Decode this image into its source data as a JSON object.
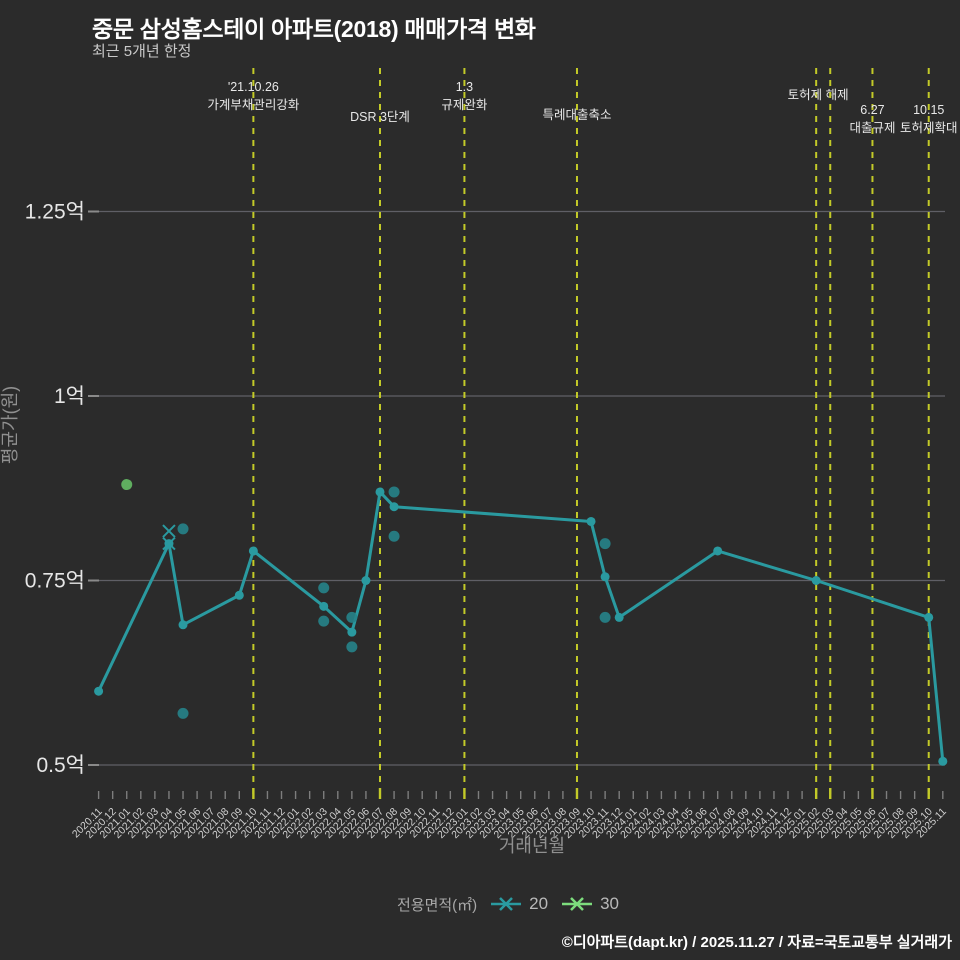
{
  "title": "중문 삼성홈스테이 아파트(2018) 매매가격 변화",
  "subtitle": "최근 5개년 한정",
  "footer": "©디아파트(dapt.kr) / 2025.11.27 / 자료=국토교통부 실거래가",
  "colors": {
    "background": "#2b2b2b",
    "title": "#ffffff",
    "grid": "#5f5f66",
    "axis_text": "#d0d0d0",
    "y_tick_text": "#e6e6e6",
    "axis_title": "#909090",
    "annotation_line": "#c3ca28",
    "annotation_text": "#e8e8e8",
    "series20": "#2a9aa0",
    "series20_scatter": "#26838a",
    "series30_scatter": "#5fae5f"
  },
  "legend": {
    "title": "전용면적(㎡)",
    "items": [
      {
        "label": "20",
        "color": "#2a9aa0"
      },
      {
        "label": "30",
        "color": "#7ddc7d"
      }
    ]
  },
  "chart_data": {
    "type": "line",
    "title": "중문 삼성홈스테이 아파트(2018) 매매가격 변화",
    "xlabel": "거래년월",
    "ylabel": "평균가(원)",
    "y_ticks": [
      {
        "value": 0.5,
        "label": "0.5억"
      },
      {
        "value": 0.75,
        "label": "0.75억"
      },
      {
        "value": 1.0,
        "label": "1억"
      },
      {
        "value": 1.25,
        "label": "1.25억"
      }
    ],
    "ylim_unit": "억원",
    "x_categories": [
      "2020.11",
      "2020.12",
      "2021.01",
      "2021.02",
      "2021.03",
      "2021.04",
      "2021.05",
      "2021.06",
      "2021.07",
      "2021.08",
      "2021.09",
      "2021.10",
      "2021.11",
      "2021.12",
      "2022.01",
      "2022.02",
      "2022.03",
      "2022.04",
      "2022.05",
      "2022.06",
      "2022.07",
      "2022.08",
      "2022.09",
      "2022.10",
      "2022.11",
      "2022.12",
      "2023.01",
      "2023.02",
      "2023.03",
      "2023.04",
      "2023.05",
      "2023.06",
      "2023.07",
      "2023.08",
      "2023.09",
      "2023.10",
      "2023.11",
      "2023.12",
      "2024.01",
      "2024.02",
      "2024.03",
      "2024.04",
      "2024.05",
      "2024.06",
      "2024.07",
      "2024.08",
      "2024.09",
      "2024.10",
      "2024.11",
      "2024.12",
      "2025.01",
      "2025.02",
      "2025.03",
      "2025.04",
      "2025.05",
      "2025.06",
      "2025.07",
      "2025.08",
      "2025.09",
      "2025.10",
      "2025.11"
    ],
    "series": [
      {
        "name": "20",
        "line_avg": [
          [
            "2020.11",
            0.6
          ],
          [
            "2021.04",
            0.8
          ],
          [
            "2021.05",
            0.69
          ],
          [
            "2021.09",
            0.73
          ],
          [
            "2021.10",
            0.79
          ],
          [
            "2022.03",
            0.715
          ],
          [
            "2022.05",
            0.68
          ],
          [
            "2022.06",
            0.75
          ],
          [
            "2022.07",
            0.87
          ],
          [
            "2022.08",
            0.85
          ],
          [
            "2023.10",
            0.83
          ],
          [
            "2023.11",
            0.755
          ],
          [
            "2023.12",
            0.7
          ],
          [
            "2024.07",
            0.79
          ],
          [
            "2025.02",
            0.75
          ],
          [
            "2025.10",
            0.7
          ],
          [
            "2025.11",
            0.505
          ]
        ],
        "scatter": [
          [
            "2021.05",
            0.82
          ],
          [
            "2021.05",
            0.57
          ],
          [
            "2022.03",
            0.74
          ],
          [
            "2022.03",
            0.695
          ],
          [
            "2022.05",
            0.7
          ],
          [
            "2022.05",
            0.66
          ],
          [
            "2022.08",
            0.87
          ],
          [
            "2022.08",
            0.81
          ],
          [
            "2023.11",
            0.8
          ],
          [
            "2023.11",
            0.7
          ]
        ],
        "x_markers": [
          [
            "2021.04",
            0.817
          ],
          [
            "2021.04",
            0.8
          ]
        ]
      },
      {
        "name": "30",
        "line_avg": [],
        "scatter": [
          [
            "2021.01",
            0.88
          ]
        ],
        "x_markers": []
      }
    ],
    "annotations": [
      {
        "month": "2021.10",
        "lines": [
          "'21.10.26",
          "가계부채관리강화"
        ],
        "label_y": 91
      },
      {
        "month": "2022.07",
        "lines": [
          "DSR 3단계"
        ],
        "label_y": 121
      },
      {
        "month": "2023.01",
        "lines": [
          "1.3",
          "규제완화"
        ],
        "label_y": 91
      },
      {
        "month": "2023.09",
        "lines": [
          "특례대출축소"
        ],
        "label_y": 119
      },
      {
        "month": "2025.02",
        "lines": [
          "토허제 해제"
        ],
        "label_y": 99,
        "dx": 2
      },
      {
        "month": "2025.03",
        "lines": []
      },
      {
        "month": "2025.06",
        "lines": [
          "6.27",
          "대출규제"
        ],
        "label_y": 114
      },
      {
        "month": "2025.10",
        "lines": [
          "10.15",
          "토허제확대"
        ],
        "label_y": 114
      }
    ]
  }
}
